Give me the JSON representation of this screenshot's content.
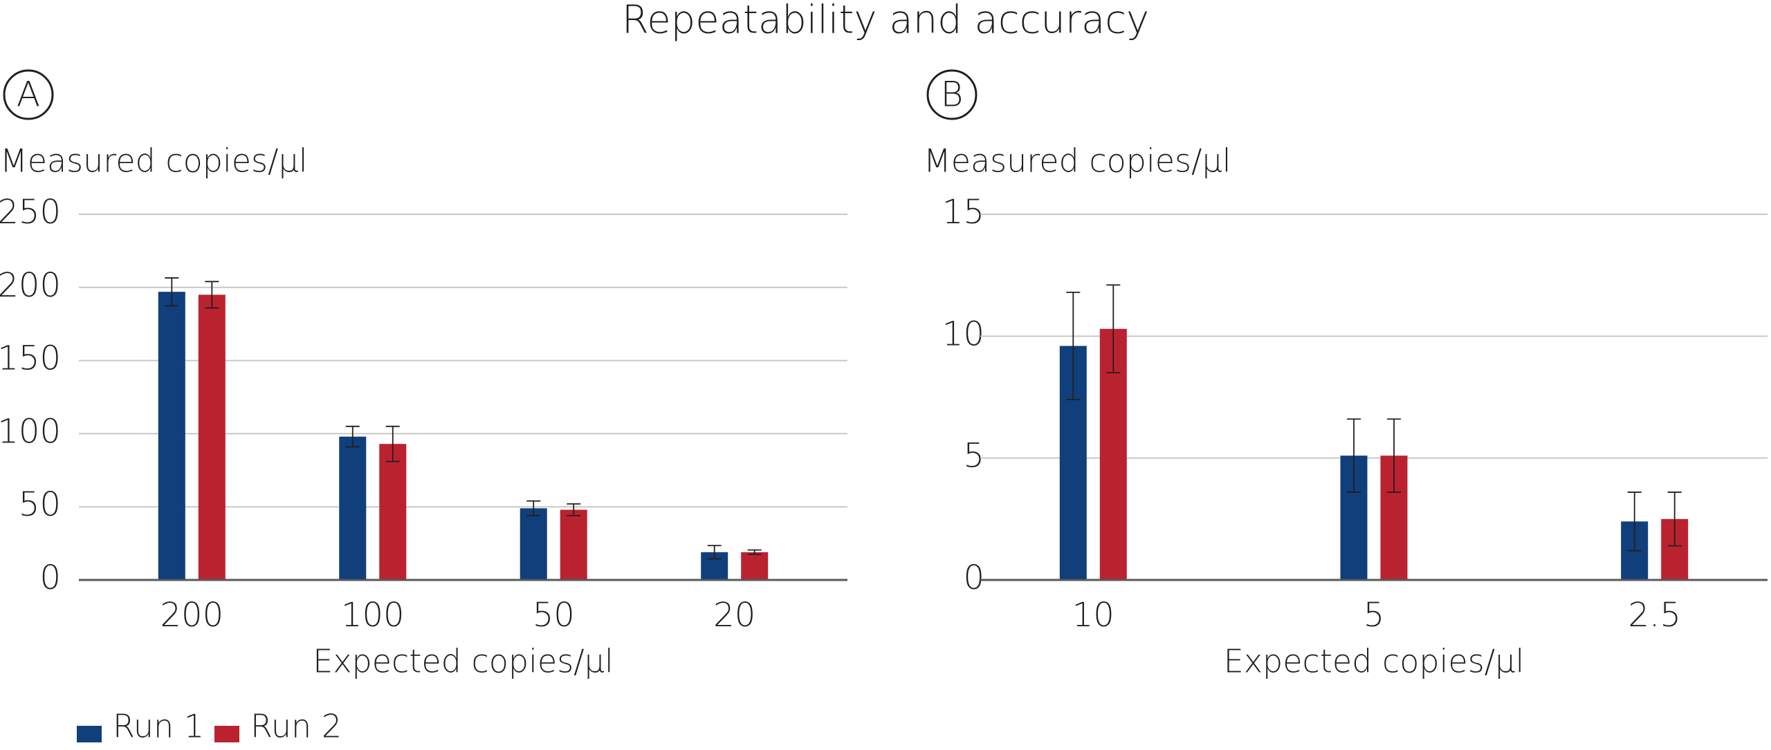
{
  "title": "Repeatability and accuracy",
  "chart_data": [
    {
      "type": "bar",
      "panel": "A",
      "y_label": "Measured copies/µl",
      "x_label": "Expected copies/µl",
      "categories": [
        "200",
        "100",
        "50",
        "20"
      ],
      "series": [
        {
          "name": "Run 1",
          "color": "#103f7b",
          "values": [
            197,
            98,
            49,
            19
          ],
          "errors": [
            9.5,
            7,
            5,
            4.5
          ]
        },
        {
          "name": "Run 2",
          "color": "#bb2230",
          "values": [
            195,
            93,
            48,
            19
          ],
          "errors": [
            9,
            12,
            4,
            1.5
          ]
        }
      ],
      "ylim": [
        0,
        250
      ],
      "yticks": [
        0,
        50,
        100,
        150,
        200,
        250
      ],
      "grid": true
    },
    {
      "type": "bar",
      "panel": "B",
      "y_label": "Measured copies/µl",
      "x_label": "Expected copies/µl",
      "categories": [
        "10",
        "5",
        "2.5"
      ],
      "series": [
        {
          "name": "Run 1",
          "color": "#103f7b",
          "values": [
            9.6,
            5.1,
            2.4
          ],
          "errors": [
            2.2,
            1.5,
            1.2
          ]
        },
        {
          "name": "Run 2",
          "color": "#bb2230",
          "values": [
            10.3,
            5.1,
            2.5
          ],
          "errors": [
            1.8,
            1.5,
            1.1
          ]
        }
      ],
      "ylim": [
        0,
        15
      ],
      "yticks": [
        0,
        5,
        10,
        15
      ],
      "grid": true
    }
  ]
}
